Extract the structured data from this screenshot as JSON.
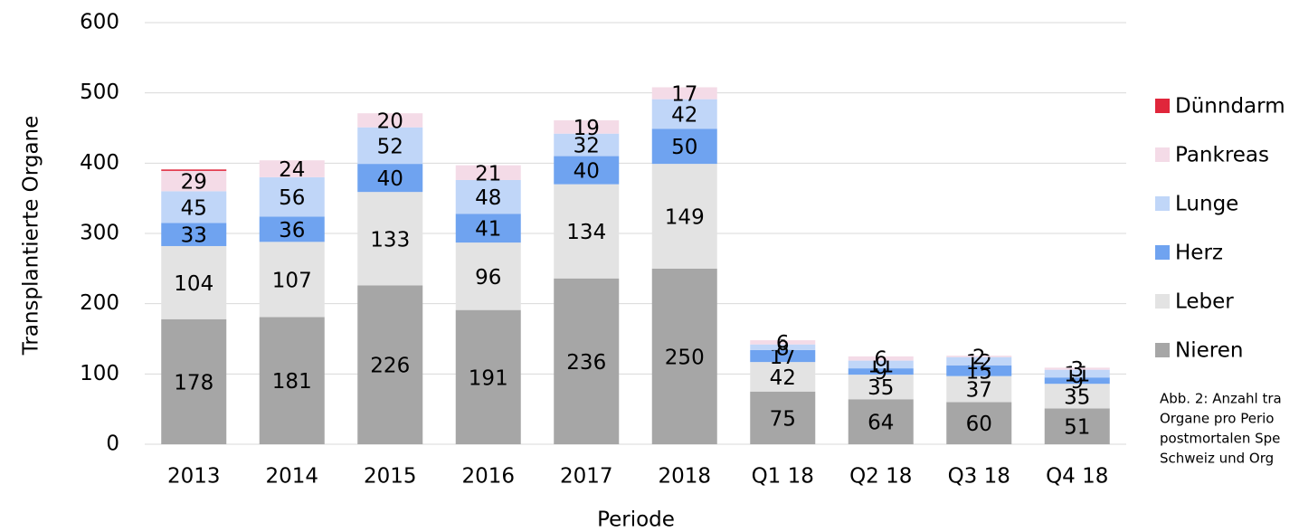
{
  "chart_data": {
    "type": "stacked_bar",
    "xlabel": "Periode",
    "ylabel": "Transplantierte Organe",
    "categories": [
      "2013",
      "2014",
      "2015",
      "2016",
      "2017",
      "2018",
      "Q1 18",
      "Q2 18",
      "Q3 18",
      "Q4 18"
    ],
    "series": [
      {
        "name": "Nieren",
        "color": "#a6a6a6",
        "data_labels": true,
        "values": [
          178,
          181,
          226,
          191,
          236,
          250,
          75,
          64,
          60,
          51
        ]
      },
      {
        "name": "Leber",
        "color": "#e3e3e3",
        "data_labels": true,
        "values": [
          104,
          107,
          133,
          96,
          134,
          149,
          42,
          35,
          37,
          35
        ]
      },
      {
        "name": "Herz",
        "color": "#6fa3f0",
        "data_labels": true,
        "values": [
          33,
          36,
          40,
          41,
          40,
          50,
          17,
          9,
          15,
          9
        ]
      },
      {
        "name": "Lunge",
        "color": "#c0d6f8",
        "data_labels": true,
        "values": [
          45,
          56,
          52,
          48,
          32,
          42,
          8,
          11,
          12,
          11
        ]
      },
      {
        "name": "Pankreas",
        "color": "#f4dbe7",
        "data_labels": true,
        "values": [
          29,
          24,
          20,
          21,
          19,
          17,
          6,
          6,
          2,
          3
        ]
      },
      {
        "name": "Dünndarm",
        "color": "#e0263b",
        "data_labels": false,
        "values": [
          2,
          0,
          0,
          0,
          0,
          0,
          0,
          0,
          0,
          0
        ]
      }
    ],
    "ylim": [
      0,
      600
    ],
    "yticks": [
      0,
      100,
      200,
      300,
      400,
      500,
      600
    ],
    "grid": true,
    "caption": [
      "Abb. 2: Anzahl tra",
      "Organe pro Perio",
      "postmortalen Spe",
      "Schweiz und Org"
    ]
  }
}
